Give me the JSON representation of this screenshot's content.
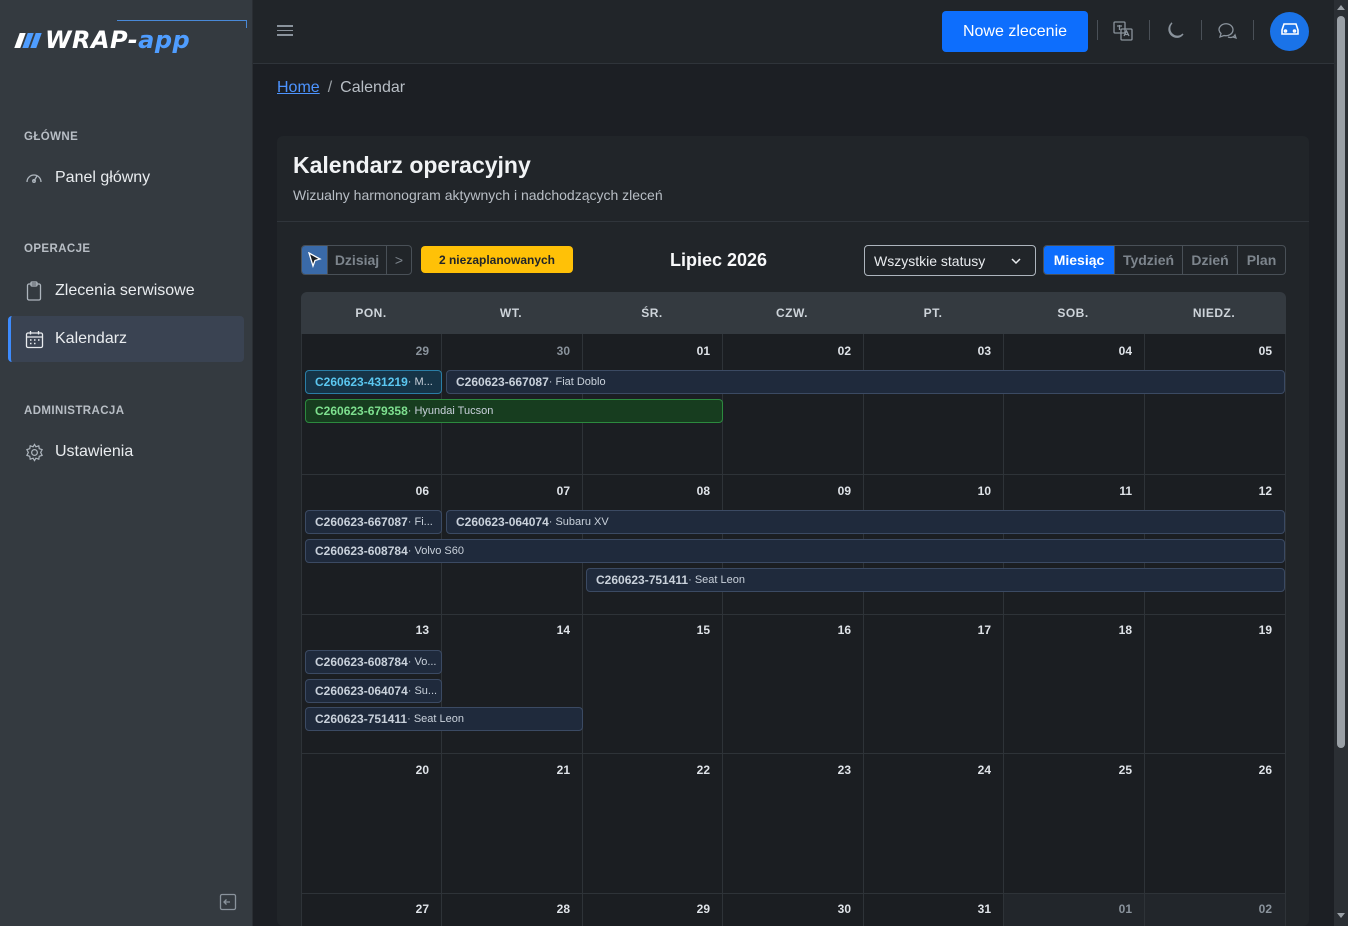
{
  "app": {
    "logo_word1": "WRAP",
    "logo_dash": "-",
    "logo_word2": "app"
  },
  "sidebar": {
    "sections": [
      {
        "label": "GŁÓWNE",
        "items": [
          {
            "label": "Panel główny",
            "icon": "gauge-icon"
          }
        ]
      },
      {
        "label": "OPERACJE",
        "items": [
          {
            "label": "Zlecenia serwisowe",
            "icon": "clipboard-icon"
          },
          {
            "label": "Kalendarz",
            "icon": "calendar-icon",
            "active": true
          }
        ]
      },
      {
        "label": "ADMINISTRACJA",
        "items": [
          {
            "label": "Ustawienia",
            "icon": "gear-icon"
          }
        ]
      }
    ]
  },
  "topbar": {
    "new_order_label": "Nowe zlecenie",
    "icons": [
      "translate-icon",
      "moon-icon",
      "chat-icon",
      "car-avatar-icon"
    ]
  },
  "breadcrumb": {
    "home": "Home",
    "separator": "/",
    "current": "Calendar"
  },
  "page": {
    "title": "Kalendarz operacyjny",
    "subtitle": "Wizualny harmonogram aktywnych i nadchodzących zleceń"
  },
  "toolbar": {
    "today_label": "Dzisiaj",
    "next_label": ">",
    "unscheduled_label": "2 niezaplanowanych",
    "month_title": "Lipiec 2026",
    "status_filter": "Wszystkie statusy",
    "views": [
      "Miesiąc",
      "Tydzień",
      "Dzień",
      "Plan"
    ],
    "active_view": "Miesiąc"
  },
  "calendar": {
    "weekdays": [
      "PON.",
      "WT.",
      "ŚR.",
      "CZW.",
      "PT.",
      "SOB.",
      "NIEDZ."
    ],
    "weeks": [
      [
        "29",
        "30",
        "01",
        "02",
        "03",
        "04",
        "05"
      ],
      [
        "06",
        "07",
        "08",
        "09",
        "10",
        "11",
        "12"
      ],
      [
        "13",
        "14",
        "15",
        "16",
        "17",
        "18",
        "19"
      ],
      [
        "20",
        "21",
        "22",
        "23",
        "24",
        "25",
        "26"
      ],
      [
        "27",
        "28",
        "29",
        "30",
        "31",
        "01",
        "02"
      ]
    ],
    "events": {
      "e1": {
        "code": "C260623-431219",
        "car": "· M..."
      },
      "e2": {
        "code": "C260623-667087",
        "car": "· Fiat Doblo"
      },
      "e3": {
        "code": "C260623-679358",
        "car": "· Hyundai Tucson"
      },
      "e4": {
        "code": "C260623-667087",
        "car": "· Fi..."
      },
      "e5": {
        "code": "C260623-064074",
        "car": "· Subaru XV"
      },
      "e6": {
        "code": "C260623-608784",
        "car": "· Volvo S60"
      },
      "e7": {
        "code": "C260623-751411",
        "car": "· Seat Leon"
      },
      "e8": {
        "code": "C260623-608784",
        "car": "· Vo..."
      },
      "e9": {
        "code": "C260623-064074",
        "car": "· Su..."
      },
      "e10": {
        "code": "C260623-751411",
        "car": "· Seat Leon"
      }
    }
  },
  "colors": {
    "accent": "#0d6efd",
    "warning": "#ffc107",
    "event_cyan": "#5bc7f0",
    "event_green": "#7ee08f"
  }
}
